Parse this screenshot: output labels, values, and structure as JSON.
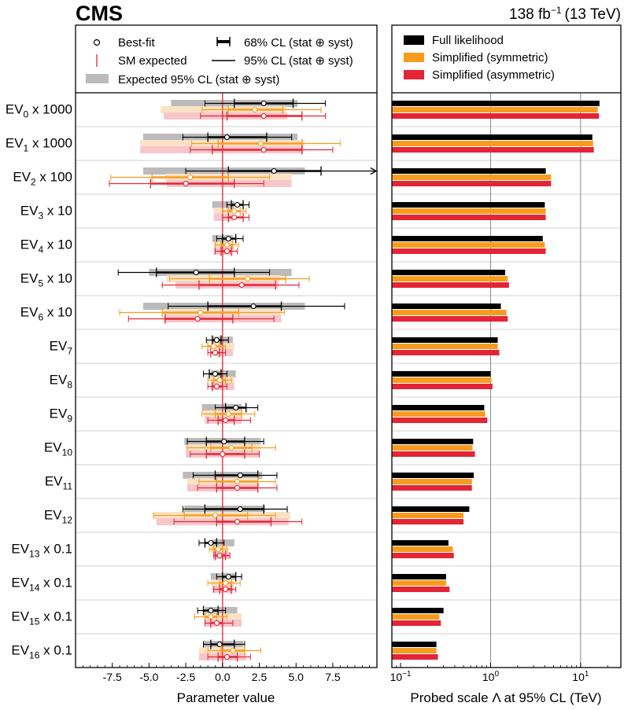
{
  "header": {
    "experiment": "CMS",
    "lumi": "138 fb",
    "lumi_exp": "−1",
    "energy": "(13 TeV)"
  },
  "legend_left": {
    "bestfit": "Best-fit",
    "sm": "SM expected",
    "cl68": "68% CL (stat ⊕ syst)",
    "cl95": "95% CL (stat ⊕ syst)",
    "expected": "Expected 95% CL (stat ⊕ syst)"
  },
  "legend_right": {
    "full": "Full likelihood",
    "sym": "Simplified (symmetric)",
    "asym": "Simplified (asymmetric)"
  },
  "colors": {
    "full": "#000000",
    "sym": "#f89c20",
    "asym": "#e42536",
    "expected_full": "#bbbbbb",
    "expected_sym": "#fbe2c4",
    "expected_asym": "#f7c6cb",
    "sm_line": "#e42536"
  },
  "rows": [
    {
      "base": "EV",
      "sub": "0",
      "suffix": " x 1000"
    },
    {
      "base": "EV",
      "sub": "1",
      "suffix": " x 1000"
    },
    {
      "base": "EV",
      "sub": "2",
      "suffix": " x 100"
    },
    {
      "base": "EV",
      "sub": "3",
      "suffix": " x 10"
    },
    {
      "base": "EV",
      "sub": "4",
      "suffix": " x 10"
    },
    {
      "base": "EV",
      "sub": "5",
      "suffix": " x 10"
    },
    {
      "base": "EV",
      "sub": "6",
      "suffix": " x 10"
    },
    {
      "base": "EV",
      "sub": "7",
      "suffix": ""
    },
    {
      "base": "EV",
      "sub": "8",
      "suffix": ""
    },
    {
      "base": "EV",
      "sub": "9",
      "suffix": ""
    },
    {
      "base": "EV",
      "sub": "10",
      "suffix": ""
    },
    {
      "base": "EV",
      "sub": "11",
      "suffix": ""
    },
    {
      "base": "EV",
      "sub": "12",
      "suffix": ""
    },
    {
      "base": "EV",
      "sub": "13",
      "suffix": " x 0.1"
    },
    {
      "base": "EV",
      "sub": "14",
      "suffix": " x 0.1"
    },
    {
      "base": "EV",
      "sub": "15",
      "suffix": " x 0.1"
    },
    {
      "base": "EV",
      "sub": "16",
      "suffix": " x 0.1"
    }
  ],
  "chart_data": [
    {
      "type": "scatter",
      "xlabel": "Parameter value",
      "xlim": [
        -10,
        10.5
      ],
      "xticks": [
        -7.5,
        -5.0,
        -2.5,
        0.0,
        2.5,
        5.0,
        7.5
      ],
      "xtick_labels": [
        "-7.5",
        "-5.0",
        "-2.5",
        "0.0",
        "2.5",
        "5.0",
        "7.5"
      ],
      "sm_expected": 0,
      "series": [
        {
          "name": "Full likelihood",
          "best_fit": [
            2.8,
            0.3,
            3.5,
            1.0,
            0.4,
            -1.8,
            2.1,
            -0.4,
            -0.5,
            0.9,
            0.1,
            1.2,
            1.2,
            -0.8,
            0.4,
            -0.8,
            -0.2
          ],
          "cl68": [
            [
              0.8,
              4.8
            ],
            [
              -1.0,
              3.0
            ],
            [
              0.4,
              6.7
            ],
            [
              0.6,
              1.4
            ],
            [
              0.0,
              0.9
            ],
            [
              -4.5,
              0.8
            ],
            [
              -1.0,
              4.0
            ],
            [
              -0.7,
              -0.1
            ],
            [
              -0.9,
              -0.1
            ],
            [
              0.2,
              1.6
            ],
            [
              -1.1,
              1.5
            ],
            [
              -0.5,
              2.4
            ],
            [
              -1.2,
              2.8
            ],
            [
              -1.2,
              -0.4
            ],
            [
              0.0,
              0.9
            ],
            [
              -1.3,
              -0.3
            ],
            [
              -0.8,
              0.8
            ]
          ],
          "cl95": [
            [
              -1.2,
              7.0
            ],
            [
              -2.7,
              4.7
            ],
            [
              -2.5,
              11.0
            ],
            [
              0.3,
              1.8
            ],
            [
              -0.4,
              1.4
            ],
            [
              -7.1,
              3.2
            ],
            [
              -3.7,
              8.3
            ],
            [
              -1.1,
              0.4
            ],
            [
              -1.3,
              0.3
            ],
            [
              -0.5,
              2.4
            ],
            [
              -2.4,
              2.8
            ],
            [
              -2.0,
              3.7
            ],
            [
              -2.7,
              4.4
            ],
            [
              -1.6,
              0.1
            ],
            [
              -0.4,
              1.3
            ],
            [
              -1.7,
              0.2
            ],
            [
              -1.3,
              1.5
            ]
          ],
          "expected95": [
            [
              -3.5,
              5.1
            ],
            [
              -5.4,
              5.1
            ],
            [
              -5.4,
              5.6
            ],
            [
              -0.7,
              0.8
            ],
            [
              -0.7,
              0.7
            ],
            [
              -5.0,
              4.7
            ],
            [
              -5.4,
              5.6
            ],
            [
              -0.7,
              0.7
            ],
            [
              -0.8,
              0.9
            ],
            [
              -1.4,
              1.3
            ],
            [
              -2.6,
              2.6
            ],
            [
              -2.7,
              2.7
            ],
            [
              -2.6,
              2.9
            ],
            [
              -0.7,
              0.8
            ],
            [
              -0.8,
              0.9
            ],
            [
              -1.2,
              1.0
            ],
            [
              -1.3,
              1.4
            ]
          ]
        },
        {
          "name": "Simplified (symmetric)",
          "best_fit": [
            2.2,
            2.6,
            -2.2,
            0.8,
            0.3,
            1.7,
            -1.5,
            -0.6,
            -0.2,
            0.4,
            0.6,
            1.0,
            -0.5,
            -0.3,
            0.2,
            -0.8,
            0.7
          ],
          "cl68": [
            [
              0.4,
              4.1
            ],
            [
              -0.3,
              5.4
            ],
            [
              -4.8,
              0.4
            ],
            [
              0.4,
              1.2
            ],
            [
              -0.1,
              0.7
            ],
            [
              -0.9,
              4.3
            ],
            [
              -4.1,
              1.1
            ],
            [
              -1.0,
              -0.2
            ],
            [
              -0.6,
              0.2
            ],
            [
              -0.5,
              1.3
            ],
            [
              -0.8,
              2.0
            ],
            [
              -0.4,
              2.4
            ],
            [
              -2.6,
              1.7
            ],
            [
              -0.6,
              0.0
            ],
            [
              -0.2,
              0.6
            ],
            [
              -1.2,
              -0.4
            ],
            [
              -0.1,
              1.5
            ]
          ],
          "cl95": [
            [
              -1.4,
              6.7
            ],
            [
              -2.1,
              8.0
            ],
            [
              -7.6,
              3.2
            ],
            [
              0.0,
              1.6
            ],
            [
              -0.5,
              1.1
            ],
            [
              -3.6,
              5.9
            ],
            [
              -7.0,
              4.2
            ],
            [
              -1.4,
              0.2
            ],
            [
              -1.0,
              0.6
            ],
            [
              -1.4,
              2.2
            ],
            [
              -2.4,
              3.6
            ],
            [
              -1.6,
              3.6
            ],
            [
              -4.7,
              3.6
            ],
            [
              -0.9,
              0.3
            ],
            [
              -1.0,
              1.2
            ],
            [
              -1.9,
              0.3
            ],
            [
              -1.0,
              2.6
            ]
          ],
          "expected95": [
            [
              -4.2,
              4.3
            ],
            [
              -5.6,
              5.6
            ],
            [
              -3.9,
              4.7
            ],
            [
              -0.6,
              0.7
            ],
            [
              -0.6,
              0.7
            ],
            [
              -3.8,
              3.9
            ],
            [
              -4.0,
              4.0
            ],
            [
              -0.6,
              0.8
            ],
            [
              -0.8,
              0.8
            ],
            [
              -1.3,
              1.3
            ],
            [
              -2.5,
              2.6
            ],
            [
              -2.4,
              2.4
            ],
            [
              -4.7,
              4.6
            ],
            [
              -0.8,
              0.4
            ],
            [
              -0.8,
              0.8
            ],
            [
              -1.2,
              1.3
            ],
            [
              -1.6,
              1.5
            ]
          ]
        },
        {
          "name": "Simplified (asymmetric)",
          "best_fit": [
            2.8,
            2.8,
            -2.5,
            0.8,
            0.3,
            1.3,
            -1.7,
            -0.5,
            -0.4,
            0.2,
            0.0,
            1.0,
            1.0,
            -0.2,
            0.2,
            -0.4,
            0.3
          ],
          "cl68": [
            [
              0.3,
              5.4
            ],
            [
              -0.7,
              5.4
            ],
            [
              -4.9,
              0.8
            ],
            [
              0.4,
              1.4
            ],
            [
              -0.1,
              0.6
            ],
            [
              -1.6,
              3.6
            ],
            [
              -3.9,
              0.7
            ],
            [
              -0.8,
              -0.2
            ],
            [
              -0.7,
              0.0
            ],
            [
              -0.3,
              0.8
            ],
            [
              -1.1,
              1.5
            ],
            [
              -0.4,
              2.4
            ],
            [
              -0.4,
              3.3
            ],
            [
              -0.5,
              0.2
            ],
            [
              -0.2,
              0.6
            ],
            [
              -0.8,
              0.0
            ],
            [
              -0.3,
              1.0
            ]
          ],
          "cl95": [
            [
              -1.5,
              7.0
            ],
            [
              -2.2,
              7.5
            ],
            [
              -7.7,
              2.8
            ],
            [
              0.0,
              1.8
            ],
            [
              -0.5,
              1.0
            ],
            [
              -4.1,
              5.2
            ],
            [
              -6.4,
              3.5
            ],
            [
              -1.0,
              0.2
            ],
            [
              -1.0,
              0.3
            ],
            [
              -1.0,
              1.9
            ],
            [
              -2.2,
              2.5
            ],
            [
              -1.7,
              3.7
            ],
            [
              -3.3,
              5.4
            ],
            [
              -0.6,
              0.5
            ],
            [
              -0.6,
              0.9
            ],
            [
              -1.2,
              0.7
            ],
            [
              -1.0,
              1.9
            ]
          ],
          "expected95": [
            [
              -4.0,
              4.4
            ],
            [
              -5.6,
              5.5
            ],
            [
              -3.8,
              4.7
            ],
            [
              -0.6,
              0.7
            ],
            [
              -0.6,
              0.7
            ],
            [
              -3.2,
              3.8
            ],
            [
              -4.0,
              4.0
            ],
            [
              -0.6,
              0.7
            ],
            [
              -0.8,
              0.8
            ],
            [
              -1.2,
              1.3
            ],
            [
              -2.5,
              2.5
            ],
            [
              -2.4,
              2.4
            ],
            [
              -4.5,
              4.5
            ],
            [
              -0.5,
              0.5
            ],
            [
              -0.7,
              0.7
            ],
            [
              -1.2,
              1.3
            ],
            [
              -1.6,
              1.6
            ]
          ]
        }
      ]
    },
    {
      "type": "bar",
      "orientation": "horizontal",
      "xlabel": "Probed scale Λ at 95% CL (TeV)",
      "xscale": "log",
      "xlim": [
        0.08,
        28
      ],
      "xtick_values": [
        0.1,
        1,
        10
      ],
      "xtick_base": "10",
      "xtick_exps": [
        "−1",
        "0",
        "1"
      ],
      "vertical_lines": [
        1,
        10
      ],
      "series": [
        {
          "name": "Full likelihood",
          "values": [
            16.2,
            13.5,
            4.1,
            4.0,
            3.8,
            1.45,
            1.3,
            1.2,
            1.0,
            0.85,
            0.64,
            0.65,
            0.58,
            0.34,
            0.32,
            0.3,
            0.25
          ]
        },
        {
          "name": "Simplified (symmetric)",
          "values": [
            15.5,
            13.8,
            4.7,
            4.1,
            4.0,
            1.55,
            1.5,
            1.2,
            1.02,
            0.87,
            0.63,
            0.62,
            0.5,
            0.38,
            0.32,
            0.27,
            0.25
          ]
        },
        {
          "name": "Simplified (asymmetric)",
          "values": [
            16.0,
            14.0,
            4.7,
            4.1,
            4.1,
            1.6,
            1.55,
            1.25,
            1.05,
            0.92,
            0.67,
            0.62,
            0.5,
            0.39,
            0.35,
            0.28,
            0.26
          ]
        }
      ]
    }
  ]
}
